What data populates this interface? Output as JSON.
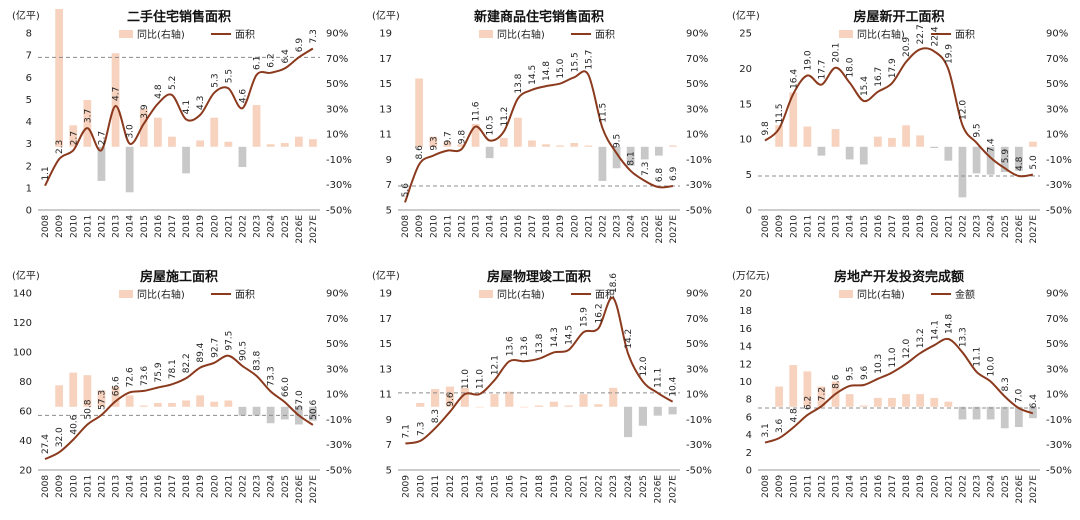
{
  "colors": {
    "line": "#8B3A1E",
    "bar_pos": "#F7D2BE",
    "bar_pos_strong": "#F2B999",
    "bar_neg": "#C8C8C8",
    "ref_line": "#8C8C8C"
  },
  "chart_data": [
    {
      "type": "bar+line",
      "title": "二手住宅销售面积",
      "ylabel": "(亿平)",
      "ylim": [
        0,
        8
      ],
      "yticks": [
        0,
        1,
        2,
        3,
        4,
        5,
        6,
        7,
        8
      ],
      "y2lim": [
        -50,
        90
      ],
      "y2ticks": [
        "-50%",
        "-30%",
        "-10%",
        "10%",
        "30%",
        "50%",
        "70%",
        "90%"
      ],
      "categories": [
        "2008",
        "2009",
        "2010",
        "2011",
        "2012",
        "2013",
        "2014",
        "2015",
        "2016",
        "2017",
        "2018",
        "2019",
        "2020",
        "2021",
        "2022",
        "2023",
        "2024",
        "2025",
        "2026E",
        "2027E"
      ],
      "legend": [
        "同比(右轴)",
        "面积"
      ],
      "ref_value": 6.9,
      "series": [
        {
          "name": "面积",
          "axis": "left",
          "values": [
            1.1,
            2.3,
            2.7,
            3.7,
            2.7,
            4.7,
            3.0,
            3.9,
            4.8,
            5.2,
            4.1,
            4.3,
            5.3,
            5.5,
            4.6,
            6.1,
            6.2,
            6.4,
            6.9,
            7.3
          ]
        },
        {
          "name": "同比(右轴)",
          "axis": "right",
          "values": [
            null,
            109,
            17,
            37,
            -27,
            74,
            -36,
            30,
            23,
            8,
            -21,
            5,
            23,
            4,
            -16,
            33,
            2,
            3,
            8,
            6
          ]
        }
      ]
    },
    {
      "type": "bar+line",
      "title": "新建商品住宅销售面积",
      "ylabel": "(亿平)",
      "ylim": [
        5,
        19
      ],
      "yticks": [
        5,
        7,
        9,
        11,
        13,
        15,
        17,
        19
      ],
      "y2lim": [
        -50,
        90
      ],
      "y2ticks": [
        "-50%",
        "-30%",
        "-10%",
        "10%",
        "30%",
        "50%",
        "70%",
        "90%"
      ],
      "categories": [
        "2008",
        "2009",
        "2010",
        "2011",
        "2012",
        "2013",
        "2014",
        "2015",
        "2016",
        "2017",
        "2018",
        "2019",
        "2020",
        "2021",
        "2022",
        "2023",
        "2024",
        "2025",
        "2026E",
        "2027E"
      ],
      "legend": [
        "同比(右轴)",
        "面积"
      ],
      "ref_value": 6.9,
      "series": [
        {
          "name": "面积",
          "axis": "left",
          "values": [
            5.6,
            8.6,
            9.3,
            9.7,
            9.8,
            11.6,
            10.5,
            11.2,
            13.8,
            14.5,
            14.8,
            15.0,
            15.5,
            15.7,
            11.5,
            9.5,
            8.1,
            7.3,
            6.8,
            6.9
          ]
        },
        {
          "name": "同比(右轴)",
          "axis": "right",
          "values": [
            null,
            54,
            8,
            4,
            2,
            18,
            -9,
            7,
            23,
            5,
            2,
            1,
            3,
            1,
            -27,
            -17,
            -15,
            -10,
            -7,
            1
          ]
        }
      ]
    },
    {
      "type": "bar+line",
      "title": "房屋新开工面积",
      "ylabel": "(亿平)",
      "ylim": [
        0,
        25
      ],
      "yticks": [
        0,
        5,
        10,
        15,
        20,
        25
      ],
      "y2lim": [
        -50,
        90
      ],
      "y2ticks": [
        "-50%",
        "-30%",
        "-10%",
        "10%",
        "30%",
        "50%",
        "70%",
        "90%"
      ],
      "categories": [
        "2008",
        "2009",
        "2010",
        "2011",
        "2012",
        "2013",
        "2014",
        "2015",
        "2016",
        "2017",
        "2018",
        "2019",
        "2020",
        "2021",
        "2022",
        "2023",
        "2024",
        "2025",
        "2026E",
        "2027E"
      ],
      "legend": [
        "同比(右轴)",
        "面积"
      ],
      "ref_value": 4.8,
      "series": [
        {
          "name": "面积",
          "axis": "left",
          "values": [
            9.8,
            11.5,
            16.4,
            19.0,
            17.7,
            20.1,
            18.0,
            15.4,
            16.7,
            17.9,
            20.9,
            22.7,
            22.4,
            19.9,
            12.0,
            9.5,
            7.4,
            5.9,
            4.8,
            5.0
          ]
        },
        {
          "name": "同比(右轴)",
          "axis": "right",
          "values": [
            null,
            17,
            43,
            16,
            -7,
            14,
            -10,
            -14,
            8,
            7,
            17,
            9,
            -1,
            -11,
            -40,
            -21,
            -22,
            -20,
            -19,
            4
          ]
        }
      ]
    },
    {
      "type": "bar+line",
      "title": "房屋施工面积",
      "ylabel": "(亿平)",
      "ylim": [
        20,
        140
      ],
      "yticks": [
        20,
        40,
        60,
        80,
        100,
        120,
        140
      ],
      "y2lim": [
        -50,
        90
      ],
      "y2ticks": [
        "-50%",
        "-30%",
        "-10%",
        "10%",
        "30%",
        "50%",
        "70%",
        "90%"
      ],
      "categories": [
        "2008",
        "2009",
        "2010",
        "2011",
        "2012",
        "2013",
        "2014",
        "2015",
        "2016",
        "2017",
        "2018",
        "2019",
        "2020",
        "2021",
        "2022",
        "2023",
        "2024",
        "2025",
        "2026E",
        "2027E"
      ],
      "legend": [
        "同比(右轴)",
        "面积"
      ],
      "ref_value": 57.0,
      "series": [
        {
          "name": "面积",
          "axis": "left",
          "values": [
            27.4,
            32.0,
            40.6,
            50.8,
            57.3,
            66.6,
            72.6,
            73.6,
            75.9,
            78.1,
            82.2,
            89.4,
            92.7,
            97.5,
            90.5,
            83.8,
            73.3,
            66.0,
            57.0,
            50.6
          ]
        },
        {
          "name": "同比(右轴)",
          "axis": "right",
          "values": [
            null,
            17,
            27,
            25,
            13,
            16,
            9,
            1,
            3,
            3,
            5,
            9,
            4,
            5,
            -7,
            -7,
            -13,
            -10,
            -14,
            -11
          ]
        }
      ]
    },
    {
      "type": "bar+line",
      "title": "房屋物理竣工面积",
      "ylabel": "(亿平)",
      "ylim": [
        5,
        19
      ],
      "yticks": [
        5,
        7,
        9,
        11,
        13,
        15,
        17,
        19
      ],
      "y2lim": [
        -50,
        90
      ],
      "y2ticks": [
        "-50%",
        "-30%",
        "-10%",
        "10%",
        "30%",
        "50%",
        "70%",
        "90%"
      ],
      "categories": [
        "2009",
        "2010",
        "2011",
        "2012",
        "2013",
        "2014",
        "2015",
        "2016",
        "2017",
        "2018",
        "2019",
        "2020",
        "2021",
        "2022",
        "2023",
        "2024",
        "2025",
        "2026E",
        "2027E"
      ],
      "legend": [
        "同比(右轴)",
        "面积"
      ],
      "ref_value": 11.1,
      "series": [
        {
          "name": "面积",
          "axis": "left",
          "values": [
            7.1,
            7.3,
            8.3,
            9.6,
            11.0,
            11.0,
            12.1,
            13.6,
            13.6,
            13.8,
            14.3,
            14.5,
            15.9,
            16.2,
            18.6,
            14.2,
            12.0,
            11.1,
            10.4
          ]
        },
        {
          "name": "同比(右轴)",
          "axis": "right",
          "values": [
            null,
            3,
            14,
            16,
            15,
            0,
            10,
            12,
            0,
            1,
            4,
            1,
            10,
            2,
            15,
            -24,
            -15,
            -7,
            -6
          ]
        }
      ]
    },
    {
      "type": "bar+line",
      "title": "房地产开发投资完成额",
      "ylabel": "(万亿元)",
      "ylim": [
        0,
        20
      ],
      "yticks": [
        0,
        2,
        4,
        6,
        8,
        10,
        12,
        14,
        16,
        18,
        20
      ],
      "y2lim": [
        -50,
        90
      ],
      "y2ticks": [
        "-50%",
        "-30%",
        "-10%",
        "10%",
        "30%",
        "50%",
        "70%",
        "90%"
      ],
      "categories": [
        "2008",
        "2009",
        "2010",
        "2011",
        "2012",
        "2013",
        "2014",
        "2015",
        "2016",
        "2017",
        "2018",
        "2019",
        "2020",
        "2021",
        "2022",
        "2023",
        "2024",
        "2025",
        "2026E",
        "2027E"
      ],
      "legend": [
        "同比(右轴)",
        "金额"
      ],
      "ref_value": 7.0,
      "series": [
        {
          "name": "金额",
          "axis": "left",
          "values": [
            3.1,
            3.6,
            4.8,
            6.2,
            7.2,
            8.6,
            9.5,
            9.6,
            10.3,
            11.0,
            12.0,
            13.2,
            14.1,
            14.8,
            13.3,
            11.1,
            10.0,
            8.3,
            7.0,
            6.4
          ]
        },
        {
          "name": "同比(右轴)",
          "axis": "right",
          "values": [
            null,
            16,
            33,
            28,
            16,
            20,
            10,
            1,
            7,
            7,
            10,
            10,
            7,
            4,
            -10,
            -10,
            -10,
            -17,
            -16,
            -9
          ]
        }
      ]
    }
  ]
}
